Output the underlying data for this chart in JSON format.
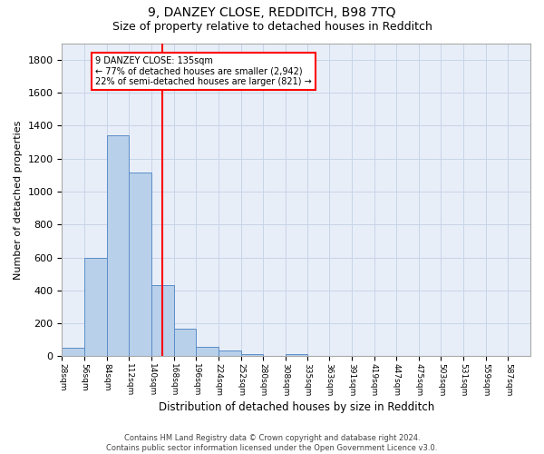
{
  "title1": "9, DANZEY CLOSE, REDDITCH, B98 7TQ",
  "title2": "Size of property relative to detached houses in Redditch",
  "xlabel": "Distribution of detached houses by size in Redditch",
  "ylabel": "Number of detached properties",
  "footnote": "Contains HM Land Registry data © Crown copyright and database right 2024.\nContains public sector information licensed under the Open Government Licence v3.0.",
  "bins": [
    28,
    56,
    84,
    112,
    140,
    168,
    196,
    224,
    252,
    280,
    308,
    335,
    363,
    391,
    419,
    447,
    475,
    503,
    531,
    559,
    587
  ],
  "bar_heights": [
    50,
    595,
    1340,
    1115,
    430,
    170,
    60,
    38,
    15,
    0,
    15,
    0,
    0,
    0,
    0,
    0,
    0,
    0,
    0,
    0
  ],
  "bar_color": "#b8d0ea",
  "bar_edge_color": "#5b8dc8",
  "vline_x": 140,
  "vline_color": "red",
  "annotation_text": "9 DANZEY CLOSE: 135sqm\n← 77% of detached houses are smaller (2,942)\n22% of semi-detached houses are larger (821) →",
  "annotation_box_color": "red",
  "annotation_bg": "white",
  "ylim": [
    0,
    1900
  ],
  "grid_color": "#c8d4e8",
  "background_color": "#e8eef8",
  "title1_fontsize": 10,
  "title2_fontsize": 9,
  "xlabel_fontsize": 8.5,
  "ylabel_fontsize": 8,
  "footnote_fontsize": 6,
  "tick_label_fontsize": 6.5,
  "tick_labels": [
    "28sqm",
    "56sqm",
    "84sqm",
    "112sqm",
    "140sqm",
    "168sqm",
    "196sqm",
    "224sqm",
    "252sqm",
    "280sqm",
    "308sqm",
    "335sqm",
    "363sqm",
    "391sqm",
    "419sqm",
    "447sqm",
    "475sqm",
    "503sqm",
    "531sqm",
    "559sqm",
    "587sqm"
  ]
}
